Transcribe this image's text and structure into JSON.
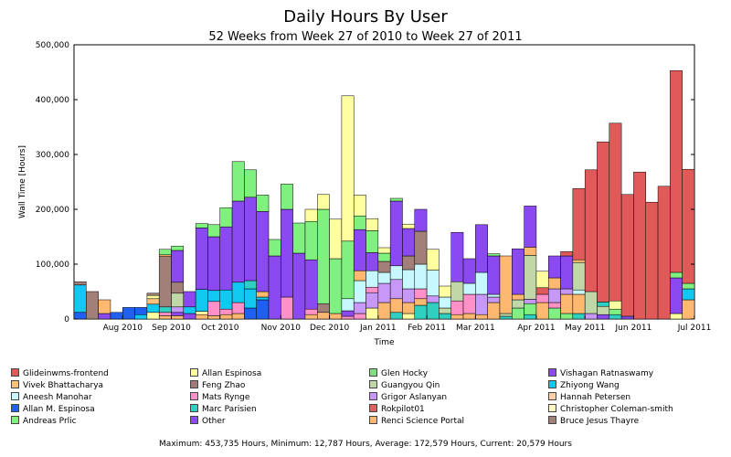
{
  "chart_data": {
    "type": "bar",
    "stacked": true,
    "title": "Daily Hours By User",
    "subtitle": "52 Weeks from Week 27 of 2010 to Week 27 of 2011",
    "xlabel": "Time",
    "ylabel": "Wall Time [Hours]",
    "ylim": [
      0,
      500000
    ],
    "yticks": [
      "0",
      "100,000",
      "200,000",
      "300,000",
      "400,000",
      "500,000"
    ],
    "xtick_labels": [
      "Aug 2010",
      "Sep 2010",
      "Oct 2010",
      "Nov 2010",
      "Dec 2010",
      "Jan 2011",
      "Feb 2011",
      "Mar 2011",
      "Apr 2011",
      "May 2011",
      "Jun 2011",
      "Jul 2011"
    ],
    "xtick_week_index": [
      4,
      8,
      12,
      17,
      21,
      25,
      29,
      33,
      38,
      42,
      46,
      51
    ],
    "legend_placement": "bottom",
    "legend": [
      {
        "name": "Glideinwms-frontend",
        "color": "#e05a5a"
      },
      {
        "name": "Allan Espinosa",
        "color": "#ffffa0"
      },
      {
        "name": "Glen Hocky",
        "color": "#80e080"
      },
      {
        "name": "Vishagan Ratnaswamy",
        "color": "#8a4af0"
      },
      {
        "name": "Vivek Bhattacharya",
        "color": "#ffc080"
      },
      {
        "name": "Feng Zhao",
        "color": "#a07a7a"
      },
      {
        "name": "Guangyou Qin",
        "color": "#c0d8a8"
      },
      {
        "name": "Zhiyong Wang",
        "color": "#10c8f0"
      },
      {
        "name": "Aneesh Manohar",
        "color": "#c8f8ff"
      },
      {
        "name": "Mats Rynge",
        "color": "#ff90c8"
      },
      {
        "name": "Grigor Aslanyan",
        "color": "#c898f8"
      },
      {
        "name": "Hannah Petersen",
        "color": "#ffd0a8"
      },
      {
        "name": "Allan M. Espinosa",
        "color": "#2060f0"
      },
      {
        "name": "Marc Parisien",
        "color": "#30d0c0"
      },
      {
        "name": "Rokpilot01",
        "color": "#e06060"
      },
      {
        "name": "Christopher Coleman-smith",
        "color": "#fff8c0"
      },
      {
        "name": "Andreas Prlic",
        "color": "#80f080"
      },
      {
        "name": "Other",
        "color": "#8a4af0"
      },
      {
        "name": "Renci Science Portal",
        "color": "#ffb870"
      },
      {
        "name": "Bruce Jesus Thayre",
        "color": "#a08078"
      }
    ],
    "weeks": [
      {
        "segments": [
          [
            "Allan M. Espinosa",
            12000
          ],
          [
            "Zhiyong Wang",
            50000
          ],
          [
            "Bruce Jesus Thayre",
            6000
          ]
        ]
      },
      {
        "segments": [
          [
            "Bruce Jesus Thayre",
            50000
          ]
        ]
      },
      {
        "segments": [
          [
            "Other",
            10000
          ],
          [
            "Renci Science Portal",
            25000
          ]
        ]
      },
      {
        "segments": [
          [
            "Allan M. Espinosa",
            12000
          ]
        ]
      },
      {
        "segments": [
          [
            "Allan M. Espinosa",
            21000
          ]
        ]
      },
      {
        "segments": [
          [
            "Zhiyong Wang",
            8000
          ],
          [
            "Allan M. Espinosa",
            13000
          ]
        ]
      },
      {
        "segments": [
          [
            "Allan Espinosa",
            12000
          ],
          [
            "Zhiyong Wang",
            15000
          ],
          [
            "Vivek Bhattacharya",
            10000
          ],
          [
            "Allan Espinosa",
            6000
          ],
          [
            "Bruce Jesus Thayre",
            4000
          ]
        ]
      },
      {
        "segments": [
          [
            "Renci Science Portal",
            6000
          ],
          [
            "Mats Rynge",
            6000
          ],
          [
            "Marc Parisien",
            10000
          ],
          [
            "Bruce Jesus Thayre",
            92000
          ],
          [
            "Renci Science Portal",
            3000
          ],
          [
            "Andreas Prlic",
            10000
          ]
        ]
      },
      {
        "segments": [
          [
            "Renci Science Portal",
            6000
          ],
          [
            "Other",
            6000
          ],
          [
            "Grigor Aslanyan",
            10000
          ],
          [
            "Guangyou Qin",
            25000
          ],
          [
            "Bruce Jesus Thayre",
            20000
          ],
          [
            "Other",
            58000
          ],
          [
            "Andreas Prlic",
            8000
          ]
        ]
      },
      {
        "segments": [
          [
            "Other",
            10000
          ],
          [
            "Zhiyong Wang",
            12000
          ],
          [
            "Other",
            28000
          ]
        ]
      },
      {
        "segments": [
          [
            "Renci Science Portal",
            8000
          ],
          [
            "Allan Espinosa",
            6000
          ],
          [
            "Zhiyong Wang",
            40000
          ],
          [
            "Other",
            112000
          ],
          [
            "Andreas Prlic",
            8000
          ]
        ]
      },
      {
        "segments": [
          [
            "Renci Science Portal",
            6000
          ],
          [
            "Mats Rynge",
            26000
          ],
          [
            "Zhiyong Wang",
            20000
          ],
          [
            "Other",
            98000
          ],
          [
            "Andreas Prlic",
            22000
          ]
        ]
      },
      {
        "segments": [
          [
            "Renci Science Portal",
            8000
          ],
          [
            "Mats Rynge",
            10000
          ],
          [
            "Zhiyong Wang",
            35000
          ],
          [
            "Other",
            115000
          ],
          [
            "Andreas Prlic",
            35000
          ]
        ]
      },
      {
        "segments": [
          [
            "Renci Science Portal",
            10000
          ],
          [
            "Mats Rynge",
            20000
          ],
          [
            "Zhiyong Wang",
            37000
          ],
          [
            "Other",
            148000
          ],
          [
            "Andreas Prlic",
            72000
          ]
        ]
      },
      {
        "segments": [
          [
            "Allan M. Espinosa",
            20000
          ],
          [
            "Zhiyong Wang",
            35000
          ],
          [
            "Marc Parisien",
            15000
          ],
          [
            "Other",
            152000
          ],
          [
            "Andreas Prlic",
            50000
          ]
        ]
      },
      {
        "segments": [
          [
            "Allan M. Espinosa",
            35000
          ],
          [
            "Zhiyong Wang",
            5000
          ],
          [
            "Renci Science Portal",
            10000
          ],
          [
            "Other",
            146000
          ],
          [
            "Andreas Prlic",
            30000
          ]
        ]
      },
      {
        "segments": [
          [
            "Other",
            115000
          ],
          [
            "Andreas Prlic",
            30000
          ]
        ]
      },
      {
        "segments": [
          [
            "Mats Rynge",
            40000
          ],
          [
            "Other",
            160000
          ],
          [
            "Andreas Prlic",
            46000
          ]
        ]
      },
      {
        "segments": [
          [
            "Other",
            120000
          ],
          [
            "Andreas Prlic",
            55000
          ]
        ]
      },
      {
        "segments": [
          [
            "Renci Science Portal",
            8000
          ],
          [
            "Mats Rynge",
            10000
          ],
          [
            "Other",
            90000
          ],
          [
            "Andreas Prlic",
            70000
          ],
          [
            "Allan Espinosa",
            22000
          ]
        ]
      },
      {
        "segments": [
          [
            "Renci Science Portal",
            12000
          ],
          [
            "Bruce Jesus Thayre",
            16000
          ],
          [
            "Andreas Prlic",
            172000
          ],
          [
            "Allan Espinosa",
            27000
          ]
        ]
      },
      {
        "segments": [
          [
            "Renci Science Portal",
            10000
          ],
          [
            "Andreas Prlic",
            100000
          ],
          [
            "Allan Espinosa",
            72000
          ]
        ]
      },
      {
        "segments": [
          [
            "Mats Rynge",
            5000
          ],
          [
            "Other",
            10000
          ],
          [
            "Aneesh Manohar",
            22000
          ],
          [
            "Andreas Prlic",
            105000
          ],
          [
            "Allan Espinosa",
            265000
          ]
        ]
      },
      {
        "segments": [
          [
            "Mats Rynge",
            10000
          ],
          [
            "Grigor Aslanyan",
            20000
          ],
          [
            "Aneesh Manohar",
            40000
          ],
          [
            "Renci Science Portal",
            18000
          ],
          [
            "Other",
            75000
          ],
          [
            "Andreas Prlic",
            25000
          ],
          [
            "Allan Espinosa",
            38000
          ]
        ]
      },
      {
        "segments": [
          [
            "Allan Espinosa",
            20000
          ],
          [
            "Grigor Aslanyan",
            28000
          ],
          [
            "Mats Rynge",
            10000
          ],
          [
            "Aneesh Manohar",
            30000
          ],
          [
            "Other",
            33000
          ],
          [
            "Andreas Prlic",
            40000
          ],
          [
            "Allan Espinosa",
            22000
          ]
        ]
      },
      {
        "segments": [
          [
            "Renci Science Portal",
            30000
          ],
          [
            "Grigor Aslanyan",
            35000
          ],
          [
            "Aneesh Manohar",
            20000
          ],
          [
            "Bruce Jesus Thayre",
            20000
          ],
          [
            "Andreas Prlic",
            15000
          ],
          [
            "Allan Espinosa",
            10000
          ]
        ]
      },
      {
        "segments": [
          [
            "Marc Parisien",
            12000
          ],
          [
            "Renci Science Portal",
            25000
          ],
          [
            "Grigor Aslanyan",
            35000
          ],
          [
            "Aneesh Manohar",
            25000
          ],
          [
            "Other",
            118000
          ],
          [
            "Andreas Prlic",
            5000
          ]
        ]
      },
      {
        "segments": [
          [
            "Allan Espinosa",
            10000
          ],
          [
            "Renci Science Portal",
            20000
          ],
          [
            "Grigor Aslanyan",
            25000
          ],
          [
            "Aneesh Manohar",
            35000
          ],
          [
            "Bruce Jesus Thayre",
            25000
          ],
          [
            "Other",
            50000
          ],
          [
            "Allan Espinosa",
            8000
          ]
        ]
      },
      {
        "segments": [
          [
            "Marc Parisien",
            25000
          ],
          [
            "Renci Science Portal",
            12000
          ],
          [
            "Mats Rynge",
            18000
          ],
          [
            "Aneesh Manohar",
            45000
          ],
          [
            "Bruce Jesus Thayre",
            60000
          ],
          [
            "Other",
            40000
          ]
        ]
      },
      {
        "segments": [
          [
            "Marc Parisien",
            30000
          ],
          [
            "Grigor Aslanyan",
            12000
          ],
          [
            "Aneesh Manohar",
            47000
          ],
          [
            "Allan Espinosa",
            38000
          ]
        ]
      },
      {
        "segments": [
          [
            "Marc Parisien",
            10000
          ],
          [
            "Guangyou Qin",
            10000
          ],
          [
            "Aneesh Manohar",
            20000
          ],
          [
            "Allan Espinosa",
            20000
          ]
        ]
      },
      {
        "segments": [
          [
            "Renci Science Portal",
            8000
          ],
          [
            "Mats Rynge",
            25000
          ],
          [
            "Guangyou Qin",
            35000
          ],
          [
            "Other",
            90000
          ]
        ]
      },
      {
        "segments": [
          [
            "Renci Science Portal",
            10000
          ],
          [
            "Mats Rynge",
            35000
          ],
          [
            "Aneesh Manohar",
            20000
          ],
          [
            "Other",
            45000
          ]
        ]
      },
      {
        "segments": [
          [
            "Renci Science Portal",
            8000
          ],
          [
            "Grigor Aslanyan",
            37000
          ],
          [
            "Aneesh Manohar",
            40000
          ],
          [
            "Other",
            87000
          ]
        ]
      },
      {
        "segments": [
          [
            "Renci Science Portal",
            30000
          ],
          [
            "Grigor Aslanyan",
            10000
          ],
          [
            "Aneesh Manohar",
            5000
          ],
          [
            "Other",
            70000
          ],
          [
            "Andreas Prlic",
            4000
          ]
        ]
      },
      {
        "segments": [
          [
            "Marc Parisien",
            5000
          ],
          [
            "Guangyou Qin",
            5000
          ],
          [
            "Renci Science Portal",
            105000
          ]
        ]
      },
      {
        "segments": [
          [
            "Andreas Prlic",
            20000
          ],
          [
            "Guangyou Qin",
            15000
          ],
          [
            "Renci Science Portal",
            10000
          ],
          [
            "Other",
            83000
          ]
        ]
      },
      {
        "segments": [
          [
            "Marc Parisien",
            8000
          ],
          [
            "Andreas Prlic",
            20000
          ],
          [
            "Grigor Aslanyan",
            8000
          ],
          [
            "Guangyou Qin",
            80000
          ],
          [
            "Renci Science Portal",
            15000
          ],
          [
            "Other",
            75000
          ]
        ]
      },
      {
        "segments": [
          [
            "Renci Science Portal",
            30000
          ],
          [
            "Mats Rynge",
            15000
          ],
          [
            "Glideinwms-frontend",
            12000
          ],
          [
            "Allan Espinosa",
            30000
          ]
        ]
      },
      {
        "segments": [
          [
            "Andreas Prlic",
            20000
          ],
          [
            "Mats Rynge",
            10000
          ],
          [
            "Grigor Aslanyan",
            25000
          ],
          [
            "Renci Science Portal",
            20000
          ],
          [
            "Other",
            40000
          ]
        ]
      },
      {
        "segments": [
          [
            "Andreas Prlic",
            10000
          ],
          [
            "Renci Science Portal",
            35000
          ],
          [
            "Grigor Aslanyan",
            10000
          ],
          [
            "Other",
            60000
          ],
          [
            "Glideinwms-frontend",
            8000
          ]
        ]
      },
      {
        "segments": [
          [
            "Marc Parisien",
            10000
          ],
          [
            "Renci Science Portal",
            35000
          ],
          [
            "Aneesh Manohar",
            8000
          ],
          [
            "Guangyou Qin",
            50000
          ],
          [
            "Renci Science Portal",
            5000
          ],
          [
            "Glideinwms-frontend",
            130000
          ]
        ]
      },
      {
        "segments": [
          [
            "Grigor Aslanyan",
            10000
          ],
          [
            "Guangyou Qin",
            40000
          ],
          [
            "Glideinwms-frontend",
            222000
          ]
        ]
      },
      {
        "segments": [
          [
            "Other",
            8000
          ],
          [
            "Guangyou Qin",
            15000
          ],
          [
            "Marc Parisien",
            8000
          ],
          [
            "Glideinwms-frontend",
            292000
          ]
        ]
      },
      {
        "segments": [
          [
            "Marc Parisien",
            8000
          ],
          [
            "Andreas Prlic",
            10000
          ],
          [
            "Allan Espinosa",
            15000
          ],
          [
            "Glideinwms-frontend",
            324000
          ]
        ]
      },
      {
        "segments": [
          [
            "Other",
            5000
          ],
          [
            "Glideinwms-frontend",
            222000
          ]
        ]
      },
      {
        "segments": [
          [
            "Glideinwms-frontend",
            268000
          ]
        ]
      },
      {
        "segments": [
          [
            "Glideinwms-frontend",
            213000
          ]
        ]
      },
      {
        "segments": [
          [
            "Glideinwms-frontend",
            242000
          ]
        ]
      },
      {
        "segments": [
          [
            "Allan Espinosa",
            10000
          ],
          [
            "Other",
            65000
          ],
          [
            "Andreas Prlic",
            10000
          ],
          [
            "Glideinwms-frontend",
            368000
          ]
        ]
      },
      {
        "segments": [
          [
            "Renci Science Portal",
            35000
          ],
          [
            "Zhiyong Wang",
            20000
          ],
          [
            "Andreas Prlic",
            10000
          ],
          [
            "Glideinwms-frontend",
            208000
          ]
        ]
      }
    ]
  },
  "footer_text": "Maximum: 453,735 Hours, Minimum: 12,787 Hours, Average: 172,579 Hours, Current: 20,579 Hours"
}
